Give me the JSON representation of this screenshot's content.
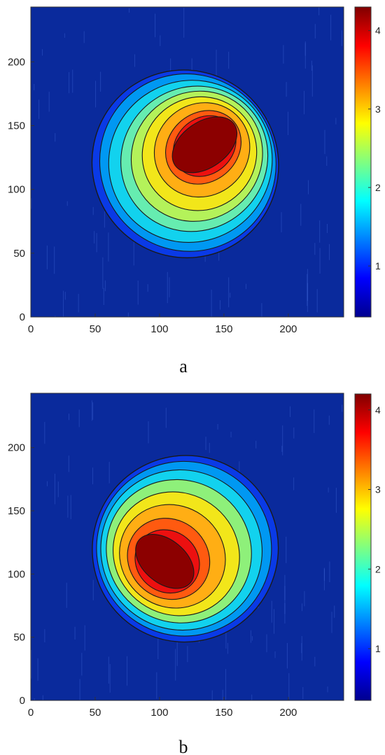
{
  "colors": {
    "background": "#0a2a9c",
    "contour_line": "#1a1a1a",
    "colormap": [
      "#00008f",
      "#0000ff",
      "#0080ff",
      "#00ffff",
      "#80ff80",
      "#ffff00",
      "#ff8000",
      "#ff0000",
      "#800000"
    ]
  },
  "chart_data": [
    {
      "type": "contour",
      "caption": "a",
      "x_ticks": [
        "0",
        "50",
        "100",
        "150",
        "200"
      ],
      "y_ticks": [
        "0",
        "50",
        "100",
        "150",
        "200"
      ],
      "xlim": [
        0,
        243
      ],
      "ylim": [
        0,
        243
      ],
      "colorbar": {
        "ticks": [
          "1",
          "2",
          "3",
          "4"
        ],
        "range": [
          0.35,
          4.3
        ]
      },
      "peak": {
        "x": 135,
        "y": 135,
        "value": 4.3
      },
      "outer_boundary_value": 0.6,
      "levels": [
        {
          "value": 0.6,
          "color": "#0a3ae6",
          "cx": 120,
          "cy": 120,
          "rx": 72,
          "ry": 74,
          "angle": -35
        },
        {
          "value": 1.2,
          "color": "#0098f2",
          "cx": 122,
          "cy": 121,
          "rx": 68,
          "ry": 70,
          "angle": -35
        },
        {
          "value": 1.8,
          "color": "#12d2ee",
          "cx": 124,
          "cy": 122,
          "rx": 64,
          "ry": 63,
          "angle": -35
        },
        {
          "value": 2.3,
          "color": "#66ecb0",
          "cx": 127,
          "cy": 124,
          "rx": 58,
          "ry": 56,
          "angle": -38
        },
        {
          "value": 2.7,
          "color": "#b4f25a",
          "cx": 129,
          "cy": 126,
          "rx": 52,
          "ry": 50,
          "angle": -40
        },
        {
          "value": 3.0,
          "color": "#f2e61a",
          "cx": 131,
          "cy": 128,
          "rx": 45,
          "ry": 44,
          "angle": -40
        },
        {
          "value": 3.3,
          "color": "#ffae14",
          "cx": 133,
          "cy": 131,
          "rx": 38,
          "ry": 36,
          "angle": -40
        },
        {
          "value": 3.6,
          "color": "#ff5a10",
          "cx": 134,
          "cy": 133,
          "rx": 31,
          "ry": 27,
          "angle": -40
        },
        {
          "value": 3.9,
          "color": "#ec1010",
          "cx": 135,
          "cy": 134,
          "rx": 26,
          "ry": 22,
          "angle": -40
        },
        {
          "value": 4.2,
          "color": "#8c0000",
          "cx": 135,
          "cy": 135,
          "rx": 28,
          "ry": 18,
          "angle": -35
        }
      ]
    },
    {
      "type": "contour",
      "caption": "b",
      "x_ticks": [
        "0",
        "50",
        "100",
        "150",
        "200"
      ],
      "y_ticks": [
        "0",
        "50",
        "100",
        "150",
        "200"
      ],
      "xlim": [
        0,
        243
      ],
      "ylim": [
        0,
        243
      ],
      "colorbar": {
        "ticks": [
          "1",
          "2",
          "3",
          "4"
        ],
        "range": [
          0.35,
          4.2
        ]
      },
      "peak": {
        "x": 105,
        "y": 110,
        "value": 4.2
      },
      "outer_boundary_value": 0.6,
      "levels": [
        {
          "value": 0.6,
          "color": "#0a3ae6",
          "cx": 120,
          "cy": 120,
          "rx": 72,
          "ry": 74,
          "angle": 35
        },
        {
          "value": 1.2,
          "color": "#0098f2",
          "cx": 119,
          "cy": 120,
          "rx": 68,
          "ry": 69,
          "angle": 35
        },
        {
          "value": 1.8,
          "color": "#12d2ee",
          "cx": 117,
          "cy": 119,
          "rx": 63,
          "ry": 63,
          "angle": 35
        },
        {
          "value": 2.3,
          "color": "#8ef07a",
          "cx": 115,
          "cy": 118,
          "rx": 57,
          "ry": 56,
          "angle": 35
        },
        {
          "value": 2.7,
          "color": "#f2e61a",
          "cx": 113,
          "cy": 116,
          "rx": 50,
          "ry": 48,
          "angle": 35
        },
        {
          "value": 3.1,
          "color": "#ffae14",
          "cx": 110,
          "cy": 114,
          "rx": 42,
          "ry": 40,
          "angle": 35
        },
        {
          "value": 3.5,
          "color": "#ff5a10",
          "cx": 107,
          "cy": 112,
          "rx": 33,
          "ry": 31,
          "angle": 40
        },
        {
          "value": 3.9,
          "color": "#ec1010",
          "cx": 106,
          "cy": 110,
          "rx": 26,
          "ry": 24,
          "angle": 40
        },
        {
          "value": 4.2,
          "color": "#8c0000",
          "cx": 104,
          "cy": 110,
          "rx": 26,
          "ry": 17,
          "angle": 40
        }
      ]
    }
  ]
}
